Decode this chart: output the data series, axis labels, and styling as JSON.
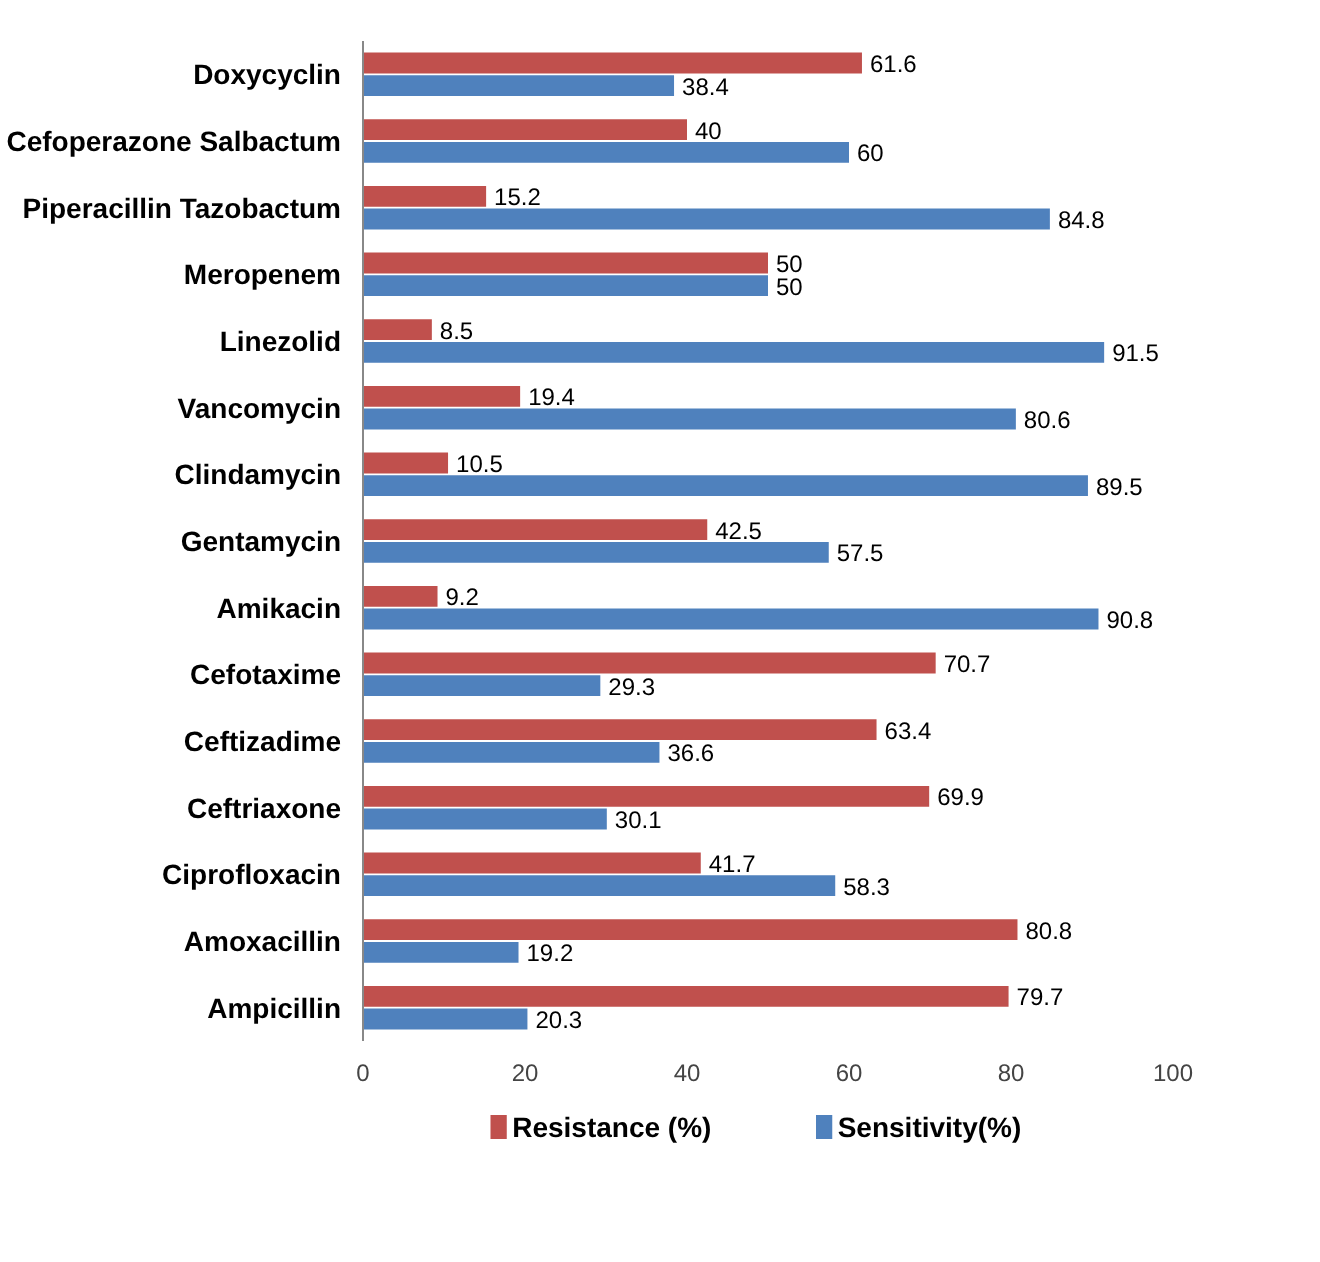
{
  "chart_data": {
    "type": "bar",
    "orientation": "horizontal",
    "categories": [
      "Doxycyclin",
      "Cefoperazone Salbactum",
      "Piperacillin Tazobactum",
      "Meropenem",
      "Linezolid",
      "Vancomycin",
      "Clindamycin",
      "Gentamycin",
      "Amikacin",
      "Cefotaxime",
      "Ceftizadime",
      "Ceftriaxone",
      "Ciprofloxacin",
      "Amoxacillin",
      "Ampicillin"
    ],
    "series": [
      {
        "name": "Resistance (%)",
        "color": "#c0504d",
        "values": [
          61.6,
          40,
          15.2,
          50,
          8.5,
          19.4,
          10.5,
          42.5,
          9.2,
          70.7,
          63.4,
          69.9,
          41.7,
          80.8,
          79.7
        ]
      },
      {
        "name": "Sensitivity(%)",
        "color": "#4f81bd",
        "values": [
          38.4,
          60,
          84.8,
          50,
          91.5,
          80.6,
          89.5,
          57.5,
          90.8,
          29.3,
          36.6,
          30.1,
          58.3,
          19.2,
          20.3
        ]
      }
    ],
    "xlim": [
      0,
      100
    ],
    "xticks": [
      0,
      20,
      40,
      60,
      80,
      100
    ],
    "data_labels": true,
    "grid": false,
    "legend": "bottom"
  }
}
